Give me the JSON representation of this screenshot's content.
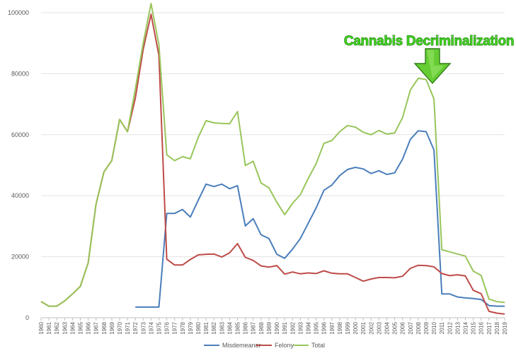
{
  "chart_data": {
    "type": "line",
    "title": "",
    "xlabel": "",
    "ylabel": "",
    "ylim": [
      0,
      100000
    ],
    "yticks": [
      0,
      20000,
      40000,
      60000,
      80000,
      100000
    ],
    "ytick_labels": [
      "0",
      "20000",
      "40000",
      "60000",
      "80000",
      "100000"
    ],
    "grid": "horizontal",
    "legend_position": "bottom",
    "x": [
      "1960",
      "1961",
      "1962",
      "1963",
      "1964",
      "1965",
      "1966",
      "1967",
      "1968",
      "1969",
      "1970",
      "1971",
      "1972",
      "1973",
      "1974",
      "1975",
      "1976",
      "1977",
      "1978",
      "1979",
      "1980",
      "1981",
      "1982",
      "1983",
      "1984",
      "1985",
      "1986",
      "1987",
      "1988",
      "1989",
      "1990",
      "1991",
      "1992",
      "1993",
      "1994",
      "1995",
      "1996",
      "1997",
      "1998",
      "1999",
      "2000",
      "2001",
      "2002",
      "2003",
      "2004",
      "2005",
      "2006",
      "2007",
      "2008",
      "2009",
      "2010",
      "2011",
      "2012",
      "2013",
      "2014",
      "2015",
      "2016",
      "2017",
      "2018",
      "2019"
    ],
    "series": [
      {
        "name": "Misdemeanor",
        "color": "#4a7ebb",
        "values": [
          null,
          null,
          null,
          null,
          null,
          null,
          null,
          null,
          null,
          null,
          null,
          null,
          3500,
          3500,
          3500,
          3500,
          34200,
          34200,
          35500,
          33000,
          38500,
          43800,
          43000,
          43800,
          42300,
          43300,
          30100,
          32500,
          27200,
          26000,
          20800,
          19500,
          22500,
          26000,
          31000,
          36000,
          41800,
          43500,
          46600,
          48600,
          49300,
          48800,
          47300,
          48200,
          47000,
          47500,
          52000,
          58500,
          61300,
          61000,
          55000,
          7800,
          7800,
          6800,
          6500,
          6300,
          6000,
          4000,
          3800,
          3800
        ]
      },
      {
        "name": "Felony",
        "color": "#be4b48",
        "values": [
          5300,
          3800,
          3800,
          5500,
          7800,
          10300,
          18000,
          37300,
          47800,
          51500,
          65000,
          61000,
          72000,
          88000,
          99500,
          86000,
          19200,
          17300,
          17300,
          19100,
          20600,
          20800,
          20900,
          19900,
          21300,
          24300,
          19800,
          18800,
          17000,
          16600,
          17100,
          14300,
          15000,
          14400,
          14700,
          14500,
          15400,
          14600,
          14400,
          14400,
          13200,
          12000,
          12700,
          13200,
          13200,
          13100,
          13600,
          16200,
          17200,
          17100,
          16700,
          14500,
          13800,
          14100,
          13700,
          9000,
          7900,
          2100,
          1500,
          1200
        ]
      },
      {
        "name": "Total",
        "color": "#98c55a",
        "values": [
          5300,
          3800,
          3800,
          5500,
          7800,
          10300,
          18000,
          37300,
          47800,
          51500,
          65000,
          61000,
          75000,
          90000,
          103000,
          89500,
          53400,
          51500,
          52800,
          52100,
          59100,
          64600,
          63900,
          63700,
          63600,
          67600,
          49900,
          51300,
          44200,
          42600,
          37900,
          33800,
          37500,
          40400,
          45700,
          50500,
          57200,
          58100,
          61000,
          63000,
          62500,
          60800,
          60000,
          61400,
          60200,
          60600,
          65600,
          74700,
          78500,
          78100,
          71700,
          22300,
          21600,
          20900,
          20200,
          15300,
          13900,
          6100,
          5300,
          5000
        ]
      }
    ],
    "annotation": {
      "text": "Cannabis Decriminalization",
      "x": "2009",
      "arrow_color": "#66cc33"
    }
  }
}
